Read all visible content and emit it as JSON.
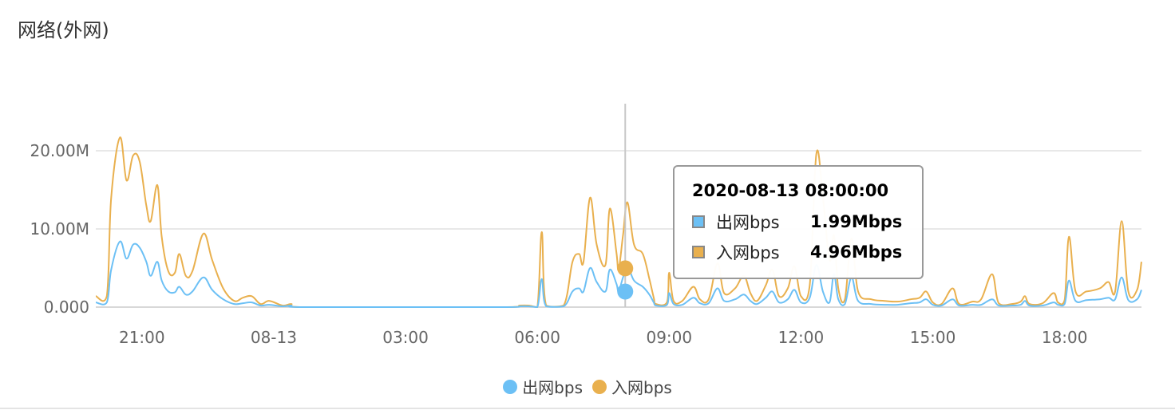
{
  "panel": {
    "title": "网络(外网)"
  },
  "colors": {
    "out": "#6cc0f5",
    "in": "#e9b04e",
    "grid": "#e0e0e0",
    "crosshair": "#c8c8c8"
  },
  "chart_data": {
    "type": "line",
    "title": "网络(外网)",
    "xlabel": "",
    "ylabel": "",
    "y_ticks": [
      "0.000",
      "10.00M",
      "20.00M"
    ],
    "y_tick_values": [
      0,
      10,
      20
    ],
    "ylim": [
      0,
      25.6
    ],
    "y_unit": "Mbps",
    "x_ticks": [
      "21:00",
      "08-13",
      "03:00",
      "06:00",
      "09:00",
      "12:00",
      "15:00",
      "18:00"
    ],
    "x_tick_values": [
      21,
      24,
      27,
      30,
      33,
      36,
      39,
      42
    ],
    "x_unit": "hours since 2020-08-12 00:00",
    "xlim": [
      19.95,
      43.75
    ],
    "grid": true,
    "legend_position": "bottom-center",
    "series": [
      {
        "name": "出网bps",
        "color_key": "out",
        "points": [
          [
            19.95,
            0.6
          ],
          [
            20.2,
            0.6
          ],
          [
            20.3,
            4.8
          ],
          [
            20.5,
            8.4
          ],
          [
            20.65,
            6.2
          ],
          [
            20.8,
            8.0
          ],
          [
            20.95,
            7.6
          ],
          [
            21.1,
            5.8
          ],
          [
            21.2,
            4.0
          ],
          [
            21.35,
            5.8
          ],
          [
            21.45,
            3.4
          ],
          [
            21.6,
            2.0
          ],
          [
            21.75,
            1.9
          ],
          [
            21.85,
            2.6
          ],
          [
            22.0,
            1.6
          ],
          [
            22.15,
            2.0
          ],
          [
            22.4,
            3.8
          ],
          [
            22.6,
            2.2
          ],
          [
            22.85,
            1.0
          ],
          [
            23.1,
            0.4
          ],
          [
            23.3,
            0.5
          ],
          [
            23.5,
            0.6
          ],
          [
            23.7,
            0.2
          ],
          [
            23.9,
            0.3
          ],
          [
            24.2,
            0.1
          ],
          [
            24.4,
            0.2
          ],
          [
            24.6,
            0.0
          ],
          [
            27.0,
            0.0
          ],
          [
            29.3,
            0.0
          ],
          [
            29.6,
            0.1
          ],
          [
            29.8,
            0.1
          ],
          [
            30.0,
            0.0
          ],
          [
            30.1,
            3.6
          ],
          [
            30.2,
            0.1
          ],
          [
            30.6,
            0.1
          ],
          [
            30.8,
            2.0
          ],
          [
            30.95,
            2.4
          ],
          [
            31.05,
            2.0
          ],
          [
            31.2,
            5.0
          ],
          [
            31.35,
            3.2
          ],
          [
            31.55,
            2.0
          ],
          [
            31.65,
            4.8
          ],
          [
            31.8,
            3.0
          ],
          [
            31.85,
            2.0
          ],
          [
            31.95,
            3.8
          ],
          [
            32.05,
            5.2
          ],
          [
            32.2,
            3.4
          ],
          [
            32.4,
            2.6
          ],
          [
            32.55,
            1.6
          ],
          [
            32.65,
            0.6
          ],
          [
            32.7,
            0.2
          ],
          [
            32.95,
            0.3
          ],
          [
            33.0,
            1.8
          ],
          [
            33.1,
            0.4
          ],
          [
            33.3,
            0.3
          ],
          [
            33.55,
            1.2
          ],
          [
            33.7,
            0.5
          ],
          [
            33.9,
            0.5
          ],
          [
            34.1,
            2.4
          ],
          [
            34.25,
            0.8
          ],
          [
            34.5,
            1.0
          ],
          [
            34.7,
            1.6
          ],
          [
            34.85,
            0.8
          ],
          [
            35.0,
            0.4
          ],
          [
            35.2,
            1.2
          ],
          [
            35.35,
            2.0
          ],
          [
            35.5,
            0.6
          ],
          [
            35.7,
            1.0
          ],
          [
            35.85,
            2.2
          ],
          [
            36.0,
            0.6
          ],
          [
            36.2,
            1.2
          ],
          [
            36.35,
            5.4
          ],
          [
            36.5,
            2.0
          ],
          [
            36.65,
            0.6
          ],
          [
            36.75,
            4.2
          ],
          [
            36.85,
            1.0
          ],
          [
            37.0,
            0.4
          ],
          [
            37.15,
            3.8
          ],
          [
            37.3,
            0.8
          ],
          [
            37.6,
            0.4
          ],
          [
            37.9,
            0.3
          ],
          [
            38.2,
            0.3
          ],
          [
            38.5,
            0.5
          ],
          [
            38.7,
            0.6
          ],
          [
            38.85,
            1.0
          ],
          [
            39.0,
            0.3
          ],
          [
            39.2,
            0.2
          ],
          [
            39.45,
            1.0
          ],
          [
            39.6,
            0.2
          ],
          [
            39.9,
            0.3
          ],
          [
            40.1,
            0.3
          ],
          [
            40.35,
            1.0
          ],
          [
            40.5,
            0.2
          ],
          [
            40.8,
            0.2
          ],
          [
            41.0,
            0.3
          ],
          [
            41.1,
            0.8
          ],
          [
            41.2,
            0.2
          ],
          [
            41.5,
            0.2
          ],
          [
            41.75,
            0.6
          ],
          [
            41.85,
            0.3
          ],
          [
            42.0,
            0.4
          ],
          [
            42.1,
            3.4
          ],
          [
            42.25,
            0.8
          ],
          [
            42.5,
            0.9
          ],
          [
            42.8,
            1.0
          ],
          [
            43.0,
            1.2
          ],
          [
            43.15,
            1.0
          ],
          [
            43.3,
            3.8
          ],
          [
            43.45,
            0.9
          ],
          [
            43.65,
            1.0
          ],
          [
            43.75,
            2.2
          ]
        ]
      },
      {
        "name": "入网bps",
        "color_key": "in",
        "points": [
          [
            19.95,
            1.4
          ],
          [
            20.2,
            1.4
          ],
          [
            20.3,
            14.0
          ],
          [
            20.5,
            21.7
          ],
          [
            20.65,
            16.2
          ],
          [
            20.8,
            19.4
          ],
          [
            20.95,
            18.6
          ],
          [
            21.1,
            13.0
          ],
          [
            21.2,
            11.0
          ],
          [
            21.35,
            15.6
          ],
          [
            21.45,
            9.0
          ],
          [
            21.6,
            4.6
          ],
          [
            21.75,
            4.4
          ],
          [
            21.85,
            6.8
          ],
          [
            22.0,
            4.0
          ],
          [
            22.15,
            4.6
          ],
          [
            22.4,
            9.4
          ],
          [
            22.6,
            6.0
          ],
          [
            22.85,
            2.4
          ],
          [
            23.1,
            0.8
          ],
          [
            23.3,
            1.2
          ],
          [
            23.5,
            1.4
          ],
          [
            23.7,
            0.4
          ],
          [
            23.9,
            0.8
          ],
          [
            24.2,
            0.2
          ],
          [
            24.4,
            0.4
          ],
          [
            24.6,
            0.0
          ],
          [
            27.0,
            0.0
          ],
          [
            29.3,
            0.0
          ],
          [
            29.6,
            0.2
          ],
          [
            29.8,
            0.2
          ],
          [
            30.0,
            0.0
          ],
          [
            30.1,
            9.6
          ],
          [
            30.2,
            0.2
          ],
          [
            30.6,
            0.2
          ],
          [
            30.8,
            5.8
          ],
          [
            30.95,
            6.8
          ],
          [
            31.05,
            5.8
          ],
          [
            31.2,
            14.0
          ],
          [
            31.35,
            8.0
          ],
          [
            31.55,
            5.4
          ],
          [
            31.65,
            12.6
          ],
          [
            31.8,
            7.0
          ],
          [
            31.85,
            4.8
          ],
          [
            31.95,
            9.2
          ],
          [
            32.05,
            13.4
          ],
          [
            32.2,
            8.0
          ],
          [
            32.4,
            6.8
          ],
          [
            32.55,
            3.6
          ],
          [
            32.65,
            1.2
          ],
          [
            32.7,
            0.4
          ],
          [
            32.95,
            0.6
          ],
          [
            33.0,
            4.4
          ],
          [
            33.1,
            0.8
          ],
          [
            33.3,
            0.8
          ],
          [
            33.55,
            2.6
          ],
          [
            33.7,
            1.0
          ],
          [
            33.9,
            1.0
          ],
          [
            34.1,
            5.6
          ],
          [
            34.25,
            1.8
          ],
          [
            34.5,
            2.4
          ],
          [
            34.7,
            4.0
          ],
          [
            34.85,
            1.8
          ],
          [
            35.0,
            0.8
          ],
          [
            35.2,
            2.8
          ],
          [
            35.35,
            4.8
          ],
          [
            35.5,
            1.4
          ],
          [
            35.7,
            2.4
          ],
          [
            35.85,
            5.2
          ],
          [
            36.0,
            1.4
          ],
          [
            36.2,
            2.8
          ],
          [
            36.35,
            19.6
          ],
          [
            36.5,
            14.0
          ],
          [
            36.65,
            6.0
          ],
          [
            36.75,
            9.2
          ],
          [
            36.85,
            2.4
          ],
          [
            37.0,
            1.0
          ],
          [
            37.15,
            8.8
          ],
          [
            37.3,
            2.0
          ],
          [
            37.6,
            1.0
          ],
          [
            37.9,
            0.8
          ],
          [
            38.2,
            0.7
          ],
          [
            38.5,
            1.0
          ],
          [
            38.7,
            1.2
          ],
          [
            38.85,
            2.0
          ],
          [
            39.0,
            0.6
          ],
          [
            39.2,
            0.4
          ],
          [
            39.45,
            2.4
          ],
          [
            39.6,
            0.4
          ],
          [
            39.9,
            0.7
          ],
          [
            40.1,
            1.0
          ],
          [
            40.35,
            4.2
          ],
          [
            40.5,
            0.5
          ],
          [
            40.8,
            0.4
          ],
          [
            41.0,
            0.7
          ],
          [
            41.1,
            1.4
          ],
          [
            41.2,
            0.4
          ],
          [
            41.5,
            0.5
          ],
          [
            41.75,
            1.8
          ],
          [
            41.85,
            0.6
          ],
          [
            42.0,
            0.9
          ],
          [
            42.1,
            9.0
          ],
          [
            42.25,
            2.0
          ],
          [
            42.5,
            2.0
          ],
          [
            42.8,
            2.4
          ],
          [
            43.0,
            3.2
          ],
          [
            43.15,
            2.0
          ],
          [
            43.3,
            11.0
          ],
          [
            43.45,
            2.0
          ],
          [
            43.65,
            2.2
          ],
          [
            43.75,
            5.8
          ]
        ]
      }
    ],
    "tooltip": {
      "x": 32.0,
      "title": "2020-08-13 08:00:00",
      "items": [
        {
          "name": "出网bps",
          "value_text": "1.99Mbps",
          "value": 1.99,
          "color_key": "out"
        },
        {
          "name": "入网bps",
          "value_text": "4.96Mbps",
          "value": 4.96,
          "color_key": "in"
        }
      ]
    }
  }
}
